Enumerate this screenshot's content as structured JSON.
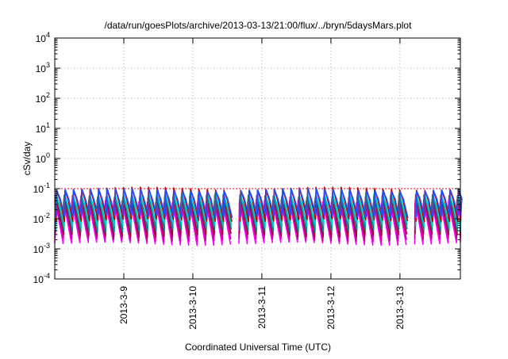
{
  "chart_data": {
    "type": "line",
    "title": "/data/run/goesPlots/archive/2013-03-13/21:00/flux/../bryn/5daysMars.plot",
    "xlabel": "Coordinated Universal Time (UTC)",
    "ylabel": "cSv/day",
    "yscale": "log",
    "ylim": [
      0.0001,
      10000
    ],
    "xlim": [
      "2013-03-08 00:00",
      "2013-03-13 21:00"
    ],
    "x_ticks": [
      "2013-3-9",
      "2013-3-10",
      "2013-3-11",
      "2013-3-12",
      "2013-3-13"
    ],
    "y_ticks": [
      {
        "base": "10",
        "exp": "-4"
      },
      {
        "base": "10",
        "exp": "-3"
      },
      {
        "base": "10",
        "exp": "-2"
      },
      {
        "base": "10",
        "exp": "-1"
      },
      {
        "base": "10",
        "exp": "0"
      },
      {
        "base": "10",
        "exp": "1"
      },
      {
        "base": "10",
        "exp": "2"
      },
      {
        "base": "10",
        "exp": "3"
      },
      {
        "base": "10",
        "exp": "4"
      }
    ],
    "grid": true,
    "reference_line": {
      "y": 0.1,
      "color": "#ff0000",
      "style": "dashed"
    },
    "pattern": {
      "cycles_per_day": 8.25,
      "gaps_at_days": [
        2.55,
        5.15
      ]
    },
    "series": [
      {
        "color": "#ff00ff",
        "peak": 0.035,
        "trough": 0.0015
      },
      {
        "color": "#cc0099",
        "peak": 0.04,
        "trough": 0.002
      },
      {
        "color": "#990033",
        "peak": 0.055,
        "trough": 0.0028
      },
      {
        "color": "#008b8b",
        "peak": 0.06,
        "trough": 0.004
      },
      {
        "color": "#00cccc",
        "peak": 0.07,
        "trough": 0.006
      },
      {
        "color": "#cc0000",
        "peak": 0.1,
        "trough": 0.009
      },
      {
        "color": "#1e50ff",
        "peak": 0.09,
        "trough": 0.012
      }
    ]
  }
}
